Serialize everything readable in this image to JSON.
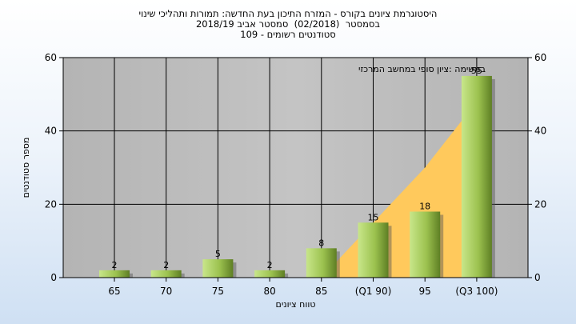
{
  "titles": {
    "line1": "היסטוגרמת ציונים בקורס - המזרח התיכון בעת החדשה: תמורות ותהליכי שינוי",
    "line2": "בסמסטר  (02/2018)  סמסטר אביב 2018/19",
    "line3": "סטודנטים רשומים - 109"
  },
  "chart_data": {
    "type": "bar",
    "categories": [
      "65",
      "70",
      "75",
      "80",
      "85",
      "(Q1 90)",
      "95",
      "(Q3 100)"
    ],
    "series": [
      {
        "values": [
          2,
          2,
          5,
          2,
          8,
          15,
          18,
          55
        ],
        "data_labels": [
          "2",
          "2",
          "5",
          "2",
          "8",
          "15",
          "18",
          "55"
        ]
      }
    ],
    "cumulative_area": {
      "values": [
        0,
        0,
        0,
        0,
        0,
        15,
        30,
        48
      ],
      "color": "#ffc95c"
    },
    "annotation": "במשימה :ציון סופי במחשב המרכזי",
    "xlabel": "טווח ציונים",
    "ylabel": "מספר סטודנטים",
    "ylim": [
      0,
      60
    ],
    "yticks": [
      0,
      20,
      40,
      60
    ],
    "right_axis": true,
    "grid": true,
    "plot_background": "#c0c0c0",
    "bar_colors": {
      "light": "#c8e68a",
      "mid": "#9cc24f",
      "dark": "#5e7e24"
    }
  }
}
